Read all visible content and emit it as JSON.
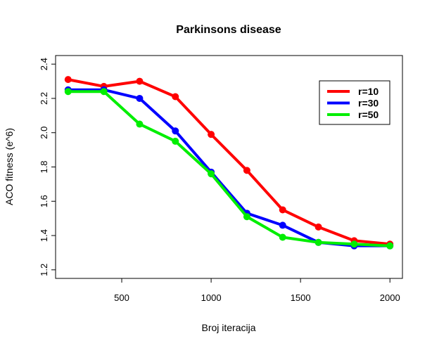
{
  "chart_data": {
    "type": "line",
    "title": "Parkinsons disease",
    "xlabel": "Broj iteracija",
    "ylabel": "ACO fitness (e^6)",
    "x": [
      200,
      400,
      600,
      800,
      1000,
      1200,
      1400,
      1600,
      1800,
      2000
    ],
    "xlim": [
      130,
      2070
    ],
    "ylim": [
      1.15,
      2.45
    ],
    "xticks": [
      500,
      1000,
      1500,
      2000
    ],
    "yticks": [
      1.2,
      1.4,
      1.6,
      1.8,
      2.0,
      2.2,
      2.4
    ],
    "xtick_labels": [
      "500",
      "1000",
      "1500",
      "2000"
    ],
    "ytick_labels": [
      "1.2",
      "1.4",
      "1.6",
      "1.8",
      "2.0",
      "2.2",
      "2.4"
    ],
    "grid": false,
    "legend_position": "top-right",
    "series": [
      {
        "name": "r=10",
        "color": "#ff0000",
        "values": [
          2.31,
          2.27,
          2.3,
          2.21,
          1.99,
          1.78,
          1.55,
          1.45,
          1.37,
          1.35
        ]
      },
      {
        "name": "r=30",
        "color": "#0000ff",
        "values": [
          2.25,
          2.25,
          2.2,
          2.01,
          1.77,
          1.53,
          1.46,
          1.36,
          1.34,
          1.34
        ]
      },
      {
        "name": "r=50",
        "color": "#00ee00",
        "values": [
          2.24,
          2.24,
          2.05,
          1.95,
          1.76,
          1.51,
          1.39,
          1.36,
          1.35,
          1.34
        ]
      }
    ]
  }
}
